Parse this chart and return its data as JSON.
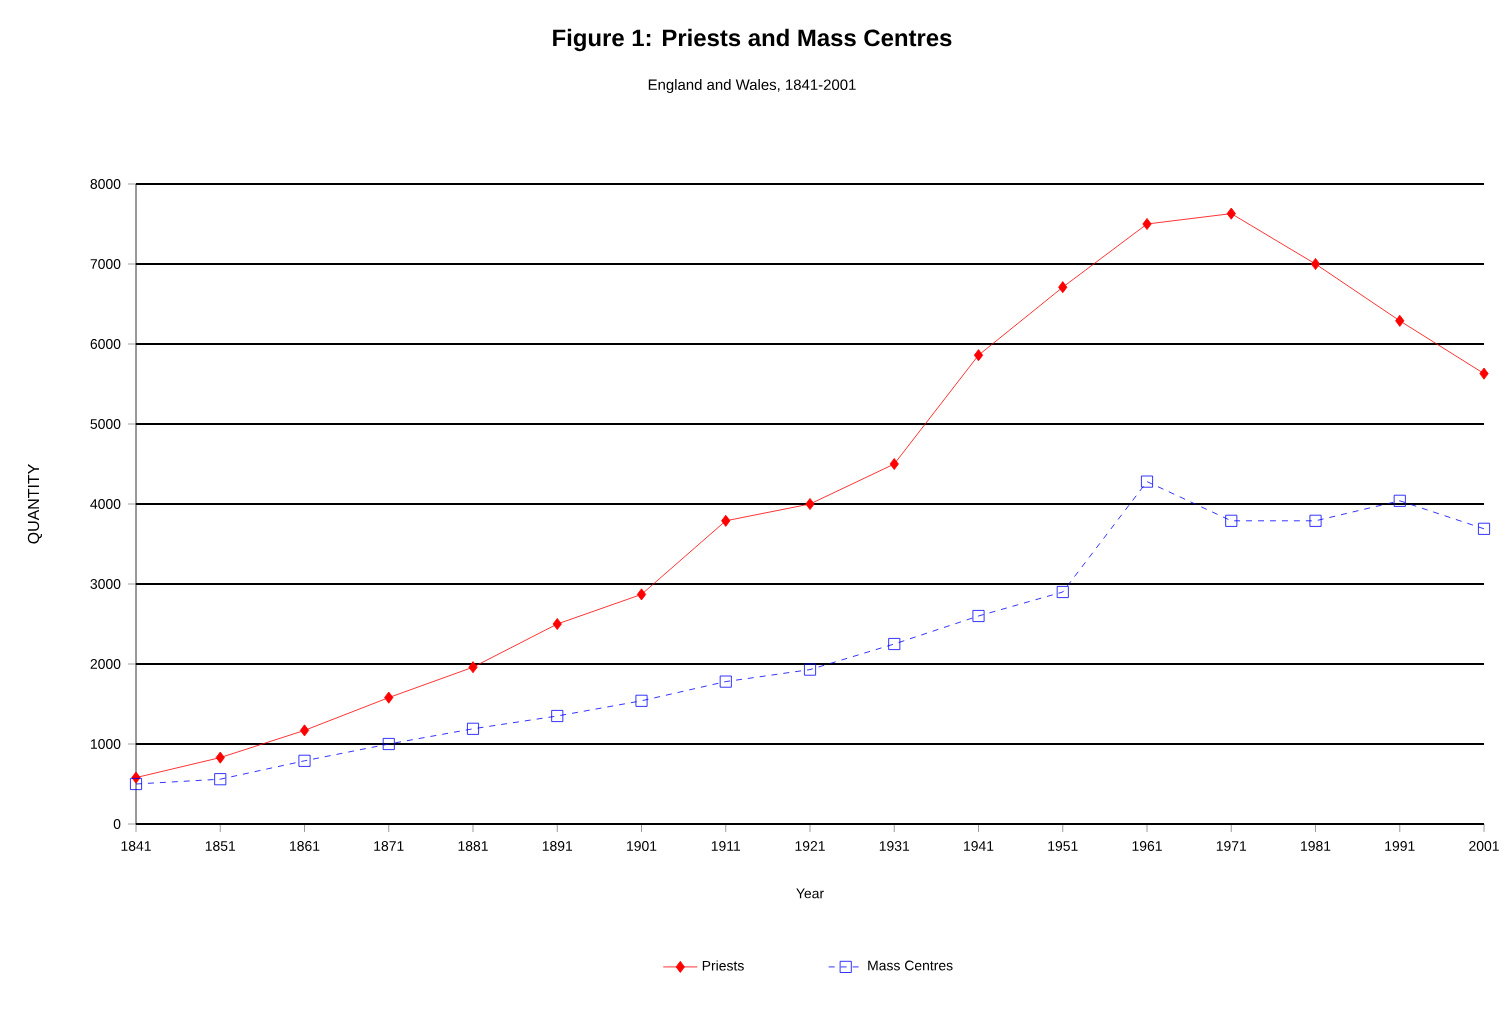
{
  "chart_data": {
    "type": "line",
    "title": "Figure 1: Priests and Mass Centres",
    "subtitle": "England and Wales, 1841-2001",
    "xlabel": "Year",
    "ylabel": "QUANTITY",
    "categories": [
      "1841",
      "1851",
      "1861",
      "1871",
      "1881",
      "1891",
      "1901",
      "1911",
      "1921",
      "1931",
      "1941",
      "1951",
      "1961",
      "1971",
      "1981",
      "1991",
      "2001"
    ],
    "series": [
      {
        "name": "Priests",
        "color": "#ff0000",
        "marker": "diamond",
        "line_style": "solid",
        "values": [
          580,
          830,
          1170,
          1580,
          1960,
          2500,
          2870,
          3790,
          4000,
          4500,
          5860,
          6710,
          7500,
          7630,
          7000,
          6290,
          5630
        ]
      },
      {
        "name": "Mass Centres",
        "color": "#0000ff",
        "marker": "square",
        "line_style": "dashed",
        "values": [
          500,
          560,
          790,
          1000,
          1190,
          1350,
          1540,
          1780,
          1930,
          2250,
          2600,
          2900,
          4280,
          3790,
          3790,
          4040,
          3690
        ]
      }
    ],
    "ylim": [
      0,
      8000
    ],
    "yticks": [
      0,
      1000,
      2000,
      3000,
      4000,
      5000,
      6000,
      7000,
      8000
    ],
    "grid": "y",
    "legend": "bottom"
  }
}
